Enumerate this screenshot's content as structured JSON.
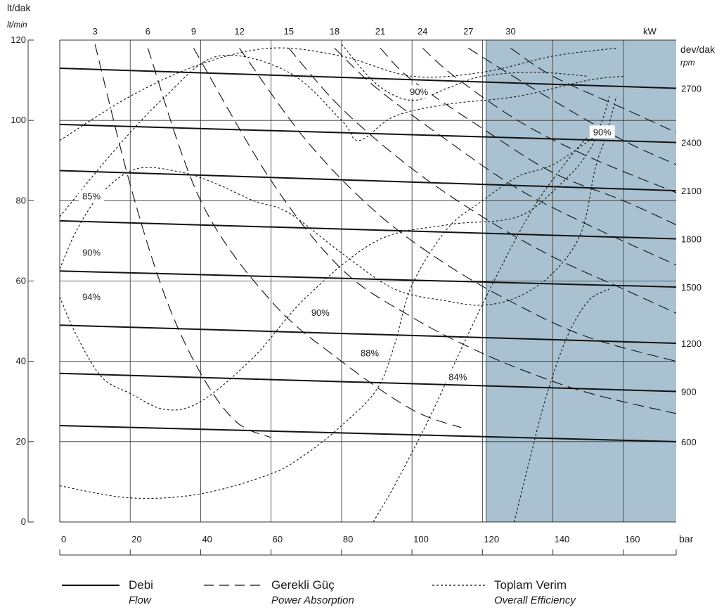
{
  "chart_data": {
    "type": "line",
    "xlabel": "bar",
    "xlim": [
      0,
      175
    ],
    "x_ticks": [
      "0",
      "20",
      "40",
      "60",
      "80",
      "100",
      "120",
      "140",
      "160"
    ],
    "ylabel": "lt/dak",
    "ylabel_sub": "lt/min",
    "ylim": [
      0,
      120
    ],
    "y_ticks": [
      "0",
      "20",
      "40",
      "60",
      "80",
      "100",
      "120"
    ],
    "right_axis_label": "dev/dak",
    "right_axis_label_sub": "rpm",
    "top_axis_unit": "kW",
    "top_ticks": [
      "3",
      "6",
      "9",
      "12",
      "15",
      "18",
      "21",
      "24",
      "27",
      "30"
    ],
    "shaded_region": {
      "from_bar": 121,
      "to_bar": 175,
      "color": "#a9c1d0"
    },
    "colors": {
      "grid": "#333333",
      "line": "#111111",
      "shade": "#a9c1d0"
    },
    "flow_series": [
      {
        "rpm": "2700",
        "x": [
          0,
          175
        ],
        "y": [
          113,
          108
        ]
      },
      {
        "rpm": "2400",
        "x": [
          0,
          175
        ],
        "y": [
          99,
          94.5
        ]
      },
      {
        "rpm": "2100",
        "x": [
          0,
          175
        ],
        "y": [
          87.5,
          82.5
        ]
      },
      {
        "rpm": "1800",
        "x": [
          0,
          175
        ],
        "y": [
          75,
          70.5
        ]
      },
      {
        "rpm": "1500",
        "x": [
          0,
          175
        ],
        "y": [
          62.5,
          58.5
        ]
      },
      {
        "rpm": "1200",
        "x": [
          0,
          175
        ],
        "y": [
          49,
          44.5
        ]
      },
      {
        "rpm": "900",
        "x": [
          0,
          175
        ],
        "y": [
          37,
          32.5
        ]
      },
      {
        "rpm": "600",
        "x": [
          0,
          175
        ],
        "y": [
          24,
          20
        ]
      }
    ],
    "power_series": [
      {
        "kw": "3",
        "x": [
          10,
          20,
          30,
          40,
          50,
          60
        ],
        "y": [
          119,
          84,
          56,
          37,
          25,
          21
        ]
      },
      {
        "kw": "6",
        "x": [
          25,
          40,
          60,
          80,
          100,
          114
        ],
        "y": [
          118,
          80,
          55,
          40,
          28,
          23.5
        ]
      },
      {
        "kw": "9",
        "x": [
          38,
          60,
          80,
          100,
          120,
          140,
          155,
          175
        ],
        "y": [
          118,
          85,
          63,
          51,
          42,
          35,
          31,
          27
        ]
      },
      {
        "kw": "12",
        "x": [
          51,
          70,
          90,
          110,
          130,
          150,
          175
        ],
        "y": [
          118,
          95,
          77,
          64,
          54,
          46,
          40
        ]
      },
      {
        "kw": "15",
        "x": [
          65,
          80,
          100,
          120,
          140,
          160,
          175
        ],
        "y": [
          118,
          103,
          88,
          76,
          66,
          58,
          52
        ]
      },
      {
        "kw": "18",
        "x": [
          78,
          90,
          110,
          130,
          150,
          175
        ],
        "y": [
          118,
          108,
          95,
          83,
          74,
          64
        ]
      },
      {
        "kw": "21",
        "x": [
          91,
          100,
          120,
          140,
          160,
          175
        ],
        "y": [
          118,
          110,
          98,
          87,
          80,
          74
        ]
      },
      {
        "kw": "24",
        "x": [
          103,
          112,
          130,
          150,
          175
        ],
        "y": [
          118,
          111,
          100,
          91,
          82
        ]
      },
      {
        "kw": "27",
        "x": [
          116,
          125,
          140,
          160,
          175
        ],
        "y": [
          118,
          113,
          105,
          95,
          89
        ]
      },
      {
        "kw": "30",
        "x": [
          128,
          140,
          160,
          175
        ],
        "y": [
          118,
          111,
          103,
          97
        ]
      }
    ],
    "efficiency_series": [
      {
        "label": "85%",
        "x": [
          0,
          20,
          40,
          60,
          80,
          100,
          120,
          140,
          158
        ],
        "y": [
          95,
          106,
          114,
          118,
          116,
          111,
          112,
          116,
          118
        ]
      },
      {
        "label": "90%",
        "x": [
          0,
          15,
          30,
          45,
          65,
          80,
          85,
          95,
          110,
          130,
          150,
          160
        ],
        "y": [
          76,
          92,
          106,
          116,
          112,
          100,
          95,
          101,
          104,
          106,
          110,
          111
        ]
      },
      {
        "label": "90%",
        "x": [
          80,
          90,
          100,
          110,
          120,
          135,
          150
        ],
        "y": [
          119,
          109,
          105,
          108,
          111,
          112,
          111
        ]
      },
      {
        "label": "94%",
        "x": [
          0,
          5,
          12,
          22,
          35,
          45,
          55,
          65,
          80,
          95,
          110,
          120,
          130,
          140,
          148,
          152,
          155,
          158
        ],
        "y": [
          63,
          73,
          82,
          88,
          87,
          84,
          80,
          77,
          67,
          58,
          55,
          54,
          56,
          62,
          72,
          88,
          96,
          106
        ]
      },
      {
        "label": "90%",
        "x": [
          0,
          5,
          12,
          20,
          30,
          40,
          55,
          70,
          90,
          110,
          130,
          142,
          150,
          154,
          156
        ],
        "y": [
          56,
          46,
          36,
          32,
          28,
          30,
          41,
          56,
          70,
          74,
          76,
          84,
          92,
          100,
          106
        ]
      },
      {
        "label": "88%",
        "x": [
          0,
          20,
          40,
          60,
          70,
          80,
          90,
          95,
          100,
          110,
          120,
          130,
          140,
          152
        ],
        "y": [
          9,
          6,
          7,
          12,
          17,
          24,
          33,
          44,
          59,
          73,
          80,
          86,
          89,
          96
        ]
      },
      {
        "label": "84%",
        "x": [
          89,
          95,
          105,
          115,
          125,
          135,
          145,
          150
        ],
        "y": [
          0,
          9,
          26,
          45,
          63,
          79,
          91,
          96
        ]
      },
      {
        "label": "",
        "x": [
          129,
          133,
          138,
          144,
          150,
          156
        ],
        "y": [
          0,
          14,
          31,
          46,
          55,
          58
        ]
      }
    ],
    "curve_labels": [
      {
        "text": "85%",
        "x": 9,
        "y": 81
      },
      {
        "text": "90%",
        "x": 9,
        "y": 67
      },
      {
        "text": "94%",
        "x": 9,
        "y": 56
      },
      {
        "text": "90%",
        "x": 102,
        "y": 107
      },
      {
        "text": "90%",
        "x": 74,
        "y": 52
      },
      {
        "text": "88%",
        "x": 88,
        "y": 42
      },
      {
        "text": "84%",
        "x": 113,
        "y": 36
      },
      {
        "text": "90%",
        "x": 154,
        "y": 97
      }
    ]
  },
  "legend": {
    "flow": {
      "label": "Debi",
      "sub": "Flow"
    },
    "power": {
      "label": "Gerekli Güç",
      "sub": "Power Absorption"
    },
    "efficiency": {
      "label": "Toplam Verim",
      "sub": "Overall Efficiency"
    }
  }
}
